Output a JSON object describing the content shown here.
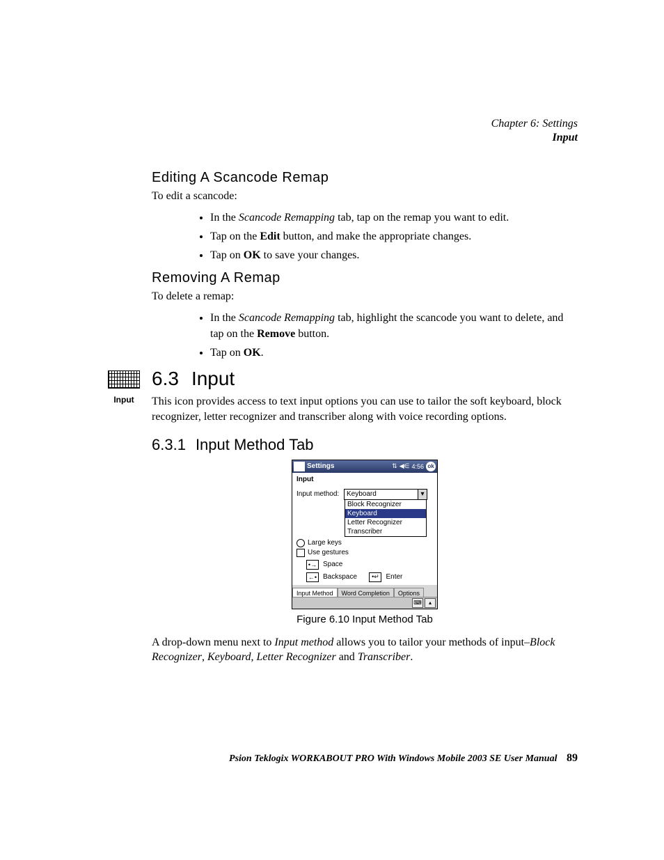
{
  "running_head": {
    "chapter": "Chapter 6: Settings",
    "section": "Input"
  },
  "margin_icon": {
    "label": "Input"
  },
  "sections": {
    "edit_title": "Editing A Scancode Remap",
    "edit_lead": "To edit a scancode:",
    "edit_b1_a": "In the ",
    "edit_b1_em": "Scancode Remapping",
    "edit_b1_b": " tab, tap on the remap you want to edit.",
    "edit_b2_a": "Tap on the ",
    "edit_b2_bold": "Edit",
    "edit_b2_b": " button, and make the appropriate changes.",
    "edit_b3_a": "Tap on ",
    "edit_b3_bold": "OK",
    "edit_b3_b": " to save your changes.",
    "rem_title": "Removing A Remap",
    "rem_lead": "To delete a remap:",
    "rem_b1_a": "In the ",
    "rem_b1_em": "Scancode Remapping",
    "rem_b1_b": " tab, highlight the scancode you want to delete, and tap on the ",
    "rem_b1_bold": "Remove",
    "rem_b1_c": " button.",
    "rem_b2_a": "Tap on ",
    "rem_b2_bold": "OK",
    "rem_b2_b": ".",
    "h63_num": "6.3",
    "h63_title": "Input",
    "h63_para": "This icon provides access to text input options you can use to tailor the soft keyboard, block recognizer, letter recognizer and transcriber along with voice recording options.",
    "h631_num": "6.3.1",
    "h631_title": "Input Method Tab",
    "after_fig_a": "A drop-down menu next to ",
    "after_fig_em1": "Input method",
    "after_fig_b": " allows you to tailor your methods of input–",
    "after_fig_em2": "Block Recognizer",
    "after_fig_c": ", ",
    "after_fig_em3": "Keyboard",
    "after_fig_d": ", ",
    "after_fig_em4": "Letter Recognizer",
    "after_fig_e": " and ",
    "after_fig_em5": "Transcriber",
    "after_fig_f": "."
  },
  "figure": {
    "caption": "Figure 6.10 Input Method Tab",
    "titlebar": {
      "title": "Settings",
      "time": "4:56",
      "ok": "ok"
    },
    "subhead": "Input",
    "input_method_label": "Input method:",
    "combo_selected": "Keyboard",
    "dropdown": [
      "Block Recognizer",
      "Keyboard",
      "Letter Recognizer",
      "Transcriber"
    ],
    "dropdown_highlight_index": 1,
    "large_keys": "Large keys",
    "use_gestures": "Use gestures",
    "gestures": {
      "space": "Space",
      "backspace": "Backspace",
      "enter": "Enter"
    },
    "tabs": [
      "Input Method",
      "Word Completion",
      "Options"
    ],
    "active_tab_index": 0
  },
  "footer": {
    "text": "Psion Teklogix WORKABOUT PRO With Windows Mobile 2003 SE User Manual",
    "page": "89"
  }
}
